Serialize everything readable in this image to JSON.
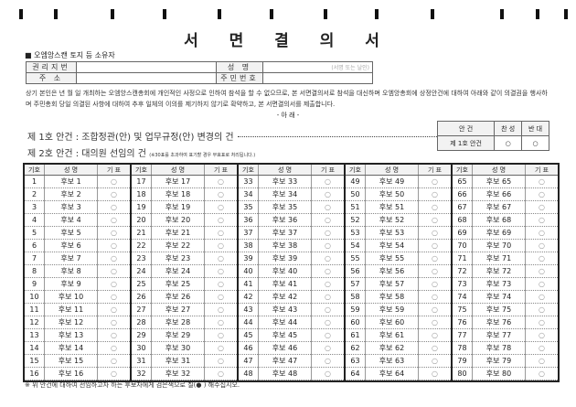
{
  "title": "서 면 결 의 서",
  "section": "■ 오엠앙스캔 토지 등 소유자",
  "info": {
    "lot_label": "권리지번",
    "name_label": "성 명",
    "sign_hint": "(서명 또는 날인)",
    "address_label": "주 소",
    "id_label": "주민번호"
  },
  "paragraph": "상기 본인은      년   월    일 개최하는 오엠앙스캔총회에 개인적인 사정으로 인하여 참석을 할 수 없으므로, 본 서면결의서로 참석을 대신하며 오엠앙총회에 상정안건에 대하여 아래와 같이 의결권을 행사하며 주민총회 당일 의결된 사항에 대하여 추후 일체의 이의를 제기하지 않기로 확약하고, 본 서면결의서를 제출합니다.",
  "arae": "- 아   래 -",
  "agenda1": "제 1호 안건 : 조합정관(안) 및 업무규정(안) 변경의 건",
  "agenda2": "제 2호 안건 : 대의원 선임의 건",
  "agenda2_note": "(※30표를 초과하여 표기할 경우 무효표로 처리됩니다.)",
  "vote_table": {
    "col_agenda": "안 건",
    "col_for": "찬 성",
    "col_against": "반 대",
    "row": "제 1호 안건",
    "circle": "○"
  },
  "grid_headers": {
    "no": "기호",
    "name": "성    명",
    "vote": "기  표"
  },
  "candidates": [
    "후보 1",
    "후보 2",
    "후보 3",
    "후보 4",
    "후보 5",
    "후보 6",
    "후보 7",
    "후보 8",
    "후보 9",
    "후보 10",
    "후보 11",
    "후보 12",
    "후보 13",
    "후보 14",
    "후보 15",
    "후보 16",
    "후보 17",
    "후보 18",
    "후보 19",
    "후보 20",
    "후보 21",
    "후보 22",
    "후보 23",
    "후보 24",
    "후보 25",
    "후보 26",
    "후보 27",
    "후보 28",
    "후보 29",
    "후보 30",
    "후보 31",
    "후보 32",
    "후보 33",
    "후보 34",
    "후보 35",
    "후보 36",
    "후보 37",
    "후보 38",
    "후보 39",
    "후보 40",
    "후보 41",
    "후보 42",
    "후보 43",
    "후보 44",
    "후보 45",
    "후보 46",
    "후보 47",
    "후보 48",
    "후보 49",
    "후보 50",
    "후보 51",
    "후보 52",
    "후보 53",
    "후보 54",
    "후보 55",
    "후보 56",
    "후보 57",
    "후보 58",
    "후보 59",
    "후보 60",
    "후보 61",
    "후보 62",
    "후보 63",
    "후보 64",
    "후보 65",
    "후보 66",
    "후보 67",
    "후보 68",
    "후보 69",
    "후보 70",
    "후보 71",
    "후보 72",
    "후보 73",
    "후보 74",
    "후보 75",
    "후보 76",
    "후보 77",
    "후보 78",
    "후보 79",
    "후보 80"
  ],
  "footer": "※ 위 안건에 대하여 선임하고자 하는 후보자에게 검은색으로 칠(● ) 해주십시오."
}
